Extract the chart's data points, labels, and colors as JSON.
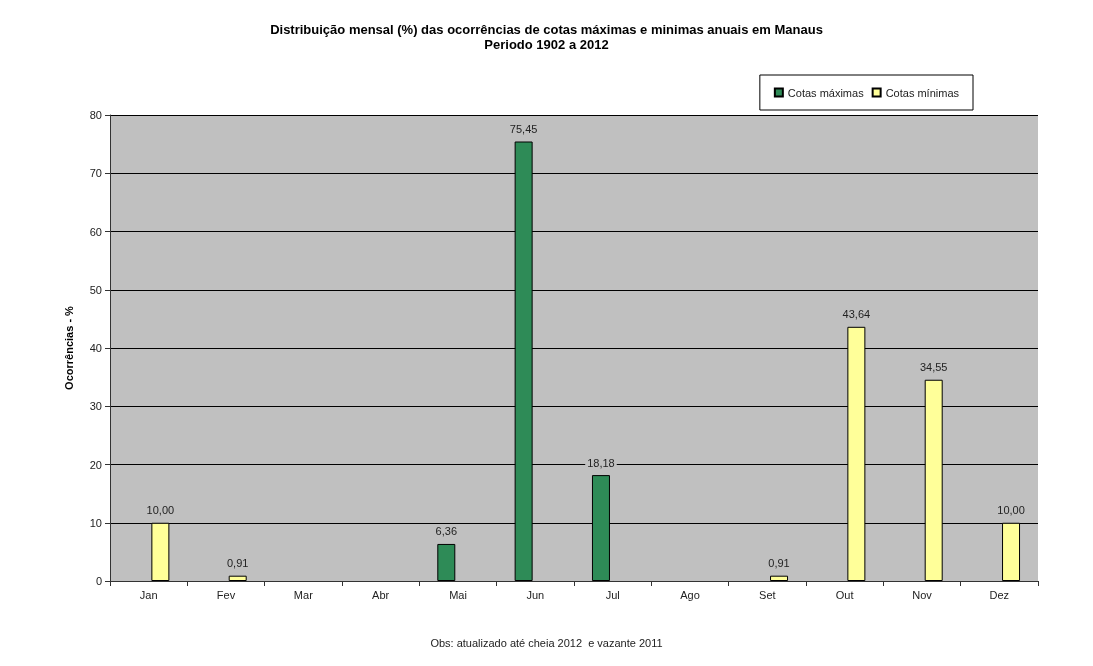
{
  "chart_data": {
    "type": "bar",
    "title": "Distribuição mensal (%) das ocorrências de cotas máximas e minimas anuais em Manaus",
    "subtitle": "Periodo 1902 a 2012",
    "ylabel": "Ocorrências - %",
    "annotations": [
      "Obs: atualizado até cheia 2012  e vazante 2011"
    ],
    "categories": [
      "Jan",
      "Fev",
      "Mar",
      "Abr",
      "Mai",
      "Jun",
      "Jul",
      "Ago",
      "Set",
      "Out",
      "Nov",
      "Dez"
    ],
    "series": [
      {
        "name": "Cotas máximas",
        "color": "#2e8b57",
        "values": [
          null,
          null,
          null,
          null,
          6.36,
          75.45,
          18.18,
          null,
          null,
          null,
          null,
          null
        ],
        "value_labels": [
          null,
          null,
          null,
          null,
          "6,36",
          "75,45",
          "18,18",
          null,
          null,
          null,
          null,
          null
        ]
      },
      {
        "name": "Cotas mínimas",
        "color": "#ffff99",
        "values": [
          10.0,
          0.91,
          null,
          null,
          null,
          null,
          null,
          null,
          0.91,
          43.64,
          34.55,
          10.0
        ],
        "value_labels": [
          "10,00",
          "0,91",
          null,
          null,
          null,
          null,
          null,
          null,
          "0,91",
          "43,64",
          "34,55",
          "10,00"
        ]
      }
    ],
    "ylim": [
      0,
      80
    ],
    "yticks": [
      0,
      10,
      20,
      30,
      40,
      50,
      60,
      70,
      80
    ],
    "grid": "y",
    "legend": "top right"
  }
}
